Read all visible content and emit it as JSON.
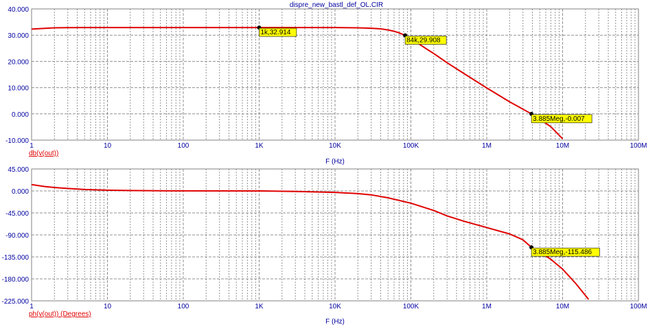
{
  "title": "dispre_new_bastl_def_OL.CIR",
  "colors": {
    "trace": "#e00000",
    "axis_text": "#0000a0",
    "grid": "#909090",
    "marker_bg": "#ffff00"
  },
  "x_ticks": [
    "1",
    "10",
    "100",
    "1K",
    "10K",
    "100K",
    "1M",
    "10M",
    "100M"
  ],
  "chart_data": [
    {
      "type": "line",
      "xlabel": "F (Hz)",
      "trace_label": "db(v(out))",
      "x_scale": "log",
      "xlim": [
        1,
        100000000
      ],
      "ylim": [
        -10,
        40
      ],
      "y_ticks": [
        "40.000",
        "30.000",
        "20.000",
        "10.000",
        "0.000",
        "-10.000"
      ],
      "grid": true,
      "series": [
        {
          "x": [
            1,
            1.5,
            2,
            3,
            5,
            10,
            100,
            1000,
            10000,
            20000,
            30000,
            40000,
            50000,
            60000,
            70000,
            84000,
            100000,
            130000,
            170000,
            200000,
            300000,
            500000,
            1000000,
            2000000,
            3885000,
            5000000,
            7000000,
            10000000
          ],
          "y": [
            32.3,
            32.6,
            32.8,
            32.88,
            32.9,
            32.91,
            32.914,
            32.914,
            32.9,
            32.8,
            32.65,
            32.4,
            32.0,
            31.5,
            30.9,
            29.908,
            28.7,
            26.5,
            24.3,
            23.0,
            19.5,
            15.4,
            9.9,
            4.6,
            -0.007,
            -2.0,
            -4.9,
            -9.5
          ]
        }
      ],
      "markers": [
        {
          "x": 1000,
          "y": 32.914,
          "label": "1k,32.914"
        },
        {
          "x": 84000,
          "y": 29.908,
          "label": "84k,29.908"
        },
        {
          "x": 3885000,
          "y": -0.007,
          "label": "3.885Meg,-0.007"
        }
      ]
    },
    {
      "type": "line",
      "xlabel": "F (Hz)",
      "trace_label": "ph(v(out)) (Degrees)",
      "x_scale": "log",
      "xlim": [
        1,
        100000000
      ],
      "ylim": [
        -225,
        45
      ],
      "y_ticks": [
        "45.000",
        "0.000",
        "-45.000",
        "-90.000",
        "-135.000",
        "-180.000",
        "-225.000"
      ],
      "grid": true,
      "series": [
        {
          "x": [
            1,
            1.5,
            2,
            3,
            5,
            10,
            20,
            50,
            100,
            1000,
            3000,
            10000,
            20000,
            30000,
            50000,
            100000,
            200000,
            300000,
            500000,
            1000000,
            2000000,
            3000000,
            3885000,
            5000000,
            7000000,
            10000000,
            15000000,
            22000000
          ],
          "y": [
            13,
            9,
            7,
            5,
            3,
            1.5,
            0.8,
            0.3,
            0.2,
            0,
            -1,
            -3,
            -5.5,
            -8,
            -14,
            -25,
            -40,
            -51,
            -62,
            -75,
            -88,
            -100,
            -115.486,
            -125,
            -140,
            -160,
            -190,
            -222
          ]
        }
      ],
      "markers": [
        {
          "x": 3885000,
          "y": -115.486,
          "label": "3.885Meg,-115.486"
        }
      ]
    }
  ]
}
